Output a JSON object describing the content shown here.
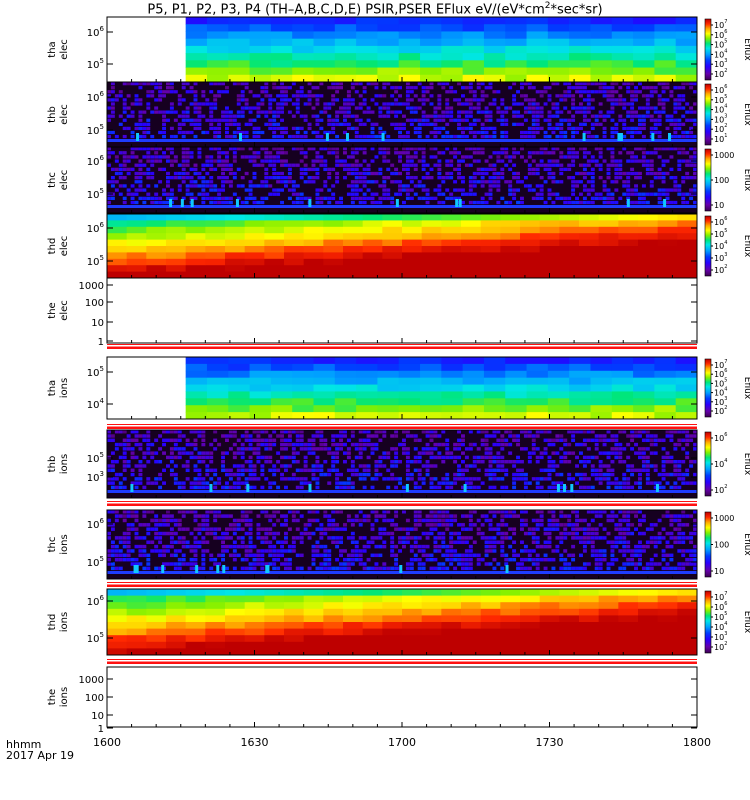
{
  "title": {
    "prefix": "P5, P1, P2, P3, P4 (TH–A,B,C,D,E) PSIR,PSER EFlux eV/(eV*cm",
    "sup": "2",
    "suffix": "*sec*sr)"
  },
  "footer": {
    "hhmm": "hhmm",
    "date": "2017 Apr 19"
  },
  "chart_data": {
    "type": "heatmap",
    "x": {
      "ticks": [
        "1600",
        "1630",
        "1700",
        "1730",
        "1800"
      ],
      "range_minutes": [
        0,
        120
      ],
      "start": "2017-04-19 16:00",
      "end": "2017-04-19 18:00"
    },
    "panels": [
      {
        "id": "tha-elec",
        "ylabel": [
          "tha",
          "elec"
        ],
        "yticks": [
          {
            "t": "10",
            "e": "6"
          },
          {
            "t": "10",
            "e": "5"
          }
        ],
        "pattern": "tha",
        "data_start_minute": 16,
        "colorbar": {
          "label": "Eflux",
          "type": "log",
          "ticks": [
            {
              "t": "10",
              "e": "7"
            },
            {
              "t": "10",
              "e": "6"
            },
            {
              "t": "10",
              "e": "5"
            },
            {
              "t": "10",
              "e": "4"
            },
            {
              "t": "10",
              "e": "3"
            },
            {
              "t": "10",
              "e": "2"
            }
          ]
        }
      },
      {
        "id": "thb-elec",
        "ylabel": [
          "thb",
          "elec"
        ],
        "yticks": [
          {
            "t": "10",
            "e": "6"
          },
          {
            "t": "10",
            "e": "5"
          }
        ],
        "pattern": "noise",
        "colorbar": {
          "label": "Eflux",
          "type": "log",
          "ticks": [
            {
              "t": "10",
              "e": "6"
            },
            {
              "t": "10",
              "e": "5"
            },
            {
              "t": "10",
              "e": "4"
            },
            {
              "t": "10",
              "e": "3"
            },
            {
              "t": "10",
              "e": "2"
            },
            {
              "t": "10",
              "e": "1"
            }
          ]
        }
      },
      {
        "id": "thc-elec",
        "ylabel": [
          "thc",
          "elec"
        ],
        "yticks": [
          {
            "t": "10",
            "e": "6"
          },
          {
            "t": "10",
            "e": "5"
          }
        ],
        "pattern": "noise",
        "colorbar": {
          "label": "Eflux",
          "type": "lin",
          "ticks": [
            {
              "t": "1000"
            },
            {
              "t": "100"
            },
            {
              "t": "10"
            }
          ]
        }
      },
      {
        "id": "thd-elec",
        "ylabel": [
          "thd",
          "elec"
        ],
        "yticks": [
          {
            "t": "10",
            "e": "6"
          },
          {
            "t": "10",
            "e": "5"
          }
        ],
        "pattern": "thd",
        "colorbar": {
          "label": "Eflux",
          "type": "log",
          "ticks": [
            {
              "t": "10",
              "e": "6"
            },
            {
              "t": "10",
              "e": "5"
            },
            {
              "t": "10",
              "e": "4"
            },
            {
              "t": "10",
              "e": "3"
            },
            {
              "t": "10",
              "e": "2"
            }
          ]
        }
      },
      {
        "id": "the-elec",
        "ylabel": [
          "the",
          "elec"
        ],
        "yticks": [
          {
            "t": "1000"
          },
          {
            "t": "100"
          },
          {
            "t": "10"
          },
          {
            "t": "1"
          }
        ],
        "pattern": "empty",
        "colorbar": null
      },
      {
        "id": "tha-ions",
        "ylabel": [
          "tha",
          "ions"
        ],
        "yticks": [
          {
            "t": "10",
            "e": "5"
          },
          {
            "t": "10",
            "e": "4"
          }
        ],
        "pattern": "tha",
        "data_start_minute": 16,
        "colorbar": {
          "label": "Eflux",
          "type": "log",
          "ticks": [
            {
              "t": "10",
              "e": "7"
            },
            {
              "t": "10",
              "e": "6"
            },
            {
              "t": "10",
              "e": "5"
            },
            {
              "t": "10",
              "e": "4"
            },
            {
              "t": "10",
              "e": "3"
            },
            {
              "t": "10",
              "e": "2"
            }
          ]
        }
      },
      {
        "id": "thb-ions",
        "ylabel": [
          "thb",
          "ions"
        ],
        "yticks": [
          {
            "t": "10",
            "e": "5"
          },
          {
            "t": "10",
            "e": "3"
          }
        ],
        "pattern": "noise",
        "colorbar": {
          "label": "Eflux",
          "type": "log",
          "ticks": [
            {
              "t": "10",
              "e": "6"
            },
            {
              "t": "10",
              "e": "4"
            },
            {
              "t": "10",
              "e": "2"
            }
          ]
        }
      },
      {
        "id": "thc-ions",
        "ylabel": [
          "thc",
          "ions"
        ],
        "yticks": [
          {
            "t": "10",
            "e": "6"
          },
          {
            "t": "10",
            "e": "5"
          }
        ],
        "pattern": "noise",
        "colorbar": {
          "label": "Eflux",
          "type": "lin",
          "ticks": [
            {
              "t": "1000"
            },
            {
              "t": "100"
            },
            {
              "t": "10"
            }
          ]
        }
      },
      {
        "id": "thd-ions",
        "ylabel": [
          "thd",
          "ions"
        ],
        "yticks": [
          {
            "t": "10",
            "e": "6"
          },
          {
            "t": "10",
            "e": "5"
          }
        ],
        "pattern": "thd",
        "colorbar": {
          "label": "Eflux",
          "type": "log",
          "ticks": [
            {
              "t": "10",
              "e": "7"
            },
            {
              "t": "10",
              "e": "6"
            },
            {
              "t": "10",
              "e": "5"
            },
            {
              "t": "10",
              "e": "4"
            },
            {
              "t": "10",
              "e": "3"
            },
            {
              "t": "10",
              "e": "2"
            }
          ]
        }
      },
      {
        "id": "the-ions",
        "ylabel": [
          "the",
          "ions"
        ],
        "yticks": [
          {
            "t": "1000"
          },
          {
            "t": "100"
          },
          {
            "t": "10"
          },
          {
            "t": "1"
          }
        ],
        "pattern": "empty",
        "colorbar": null
      }
    ]
  }
}
